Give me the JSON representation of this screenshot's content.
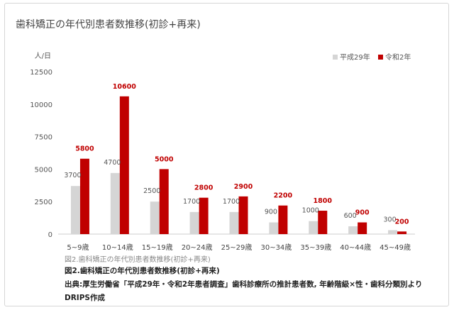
{
  "header": {
    "title": "歯科矯正の年代別患者数推移(初診+再来)"
  },
  "chart_data": {
    "type": "bar",
    "title": "歯科矯正の年代別患者数推移(初診+再来)",
    "yunit": "人/日",
    "ylim": [
      0,
      12500
    ],
    "yticks": [
      0,
      2500,
      5000,
      7500,
      10000,
      12500
    ],
    "grid": false,
    "legend_position": "top-right",
    "categories": [
      "5~9歳",
      "10~14歳",
      "15~19歳",
      "20~24歳",
      "25~29歳",
      "30~34歳",
      "35~39歳",
      "40~44歳",
      "45~49歳"
    ],
    "series": [
      {
        "name": "平成29年",
        "color": "#d5d5d5",
        "label_color": "#555555",
        "values": [
          3700,
          4700,
          2500,
          1700,
          1700,
          900,
          1000,
          600,
          300
        ]
      },
      {
        "name": "令和2年",
        "color": "#c00000",
        "label_color": "#c00000",
        "values": [
          5800,
          10600,
          5000,
          2800,
          2900,
          2200,
          1800,
          900,
          200
        ]
      }
    ]
  },
  "captions": {
    "figure_small": "図2.歯科矯正の年代別患者数推移(初診+再来)",
    "figure_bold": "図2.歯科矯正の年代別患者数推移(初診+再来)",
    "source": "出典:厚生労働省「平成29年・令和2年患者調査」歯科診療所の推計患者数, 年齢階級×性・歯科分類別より　　DRIPS作成"
  }
}
